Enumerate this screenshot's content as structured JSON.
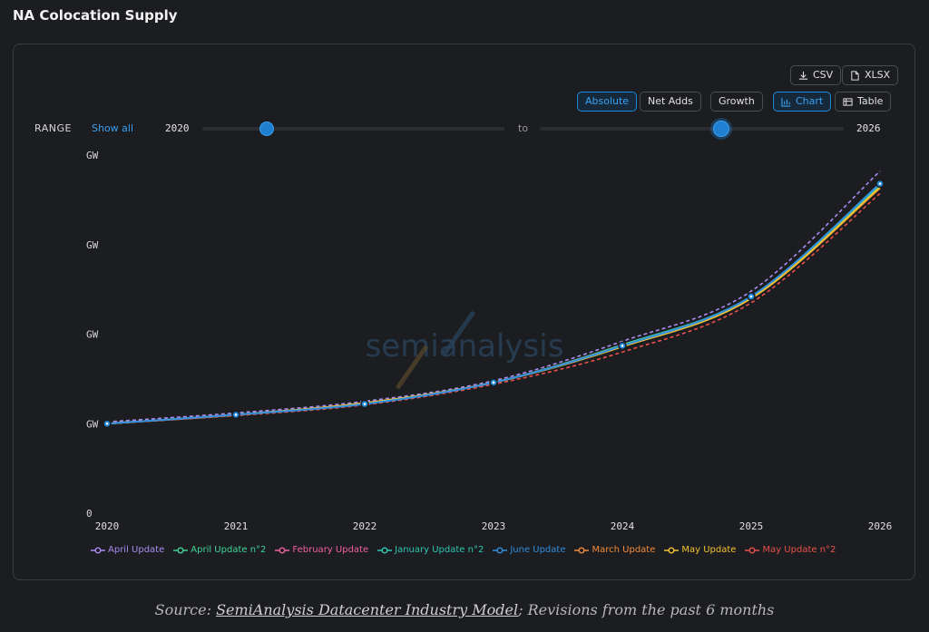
{
  "title": "NA Colocation Supply",
  "toolbar": {
    "csv": "CSV",
    "xlsx": "XLSX",
    "absolute": "Absolute",
    "net_adds": "Net Adds",
    "growth": "Growth",
    "chart": "Chart",
    "table": "Table"
  },
  "range": {
    "label": "RANGE",
    "show_all": "Show all",
    "from": "2020",
    "to_word": "to",
    "to": "2026",
    "start_fraction": 0.2,
    "end_fraction": 0.6
  },
  "watermark": "semianalysis",
  "colors": {
    "accent": "#1f88d8",
    "background": "#1c1d20"
  },
  "chart_data": {
    "type": "line",
    "x": [
      2020,
      2021,
      2022,
      2023,
      2024,
      2025,
      2026
    ],
    "y_tick_labels": [
      "0",
      "GW",
      "GW",
      "GW",
      "GW"
    ],
    "ylim": [
      0,
      4
    ],
    "grid": false,
    "legend_position": "bottom",
    "series": [
      {
        "name": "April Update",
        "color": "#a98bf0",
        "dashed": true,
        "values": [
          1.02,
          1.12,
          1.25,
          1.48,
          1.92,
          2.48,
          3.82
        ]
      },
      {
        "name": "April Update n°2",
        "color": "#3ed598",
        "dashed": false,
        "values": [
          1.0,
          1.1,
          1.23,
          1.46,
          1.88,
          2.42,
          3.68
        ]
      },
      {
        "name": "February Update",
        "color": "#f0609e",
        "dashed": false,
        "values": [
          1.0,
          1.1,
          1.23,
          1.46,
          1.87,
          2.41,
          3.66
        ]
      },
      {
        "name": "January Update n°2",
        "color": "#2cc8b0",
        "dashed": false,
        "values": [
          1.0,
          1.1,
          1.23,
          1.46,
          1.87,
          2.41,
          3.66
        ]
      },
      {
        "name": "June Update",
        "color": "#2f8fe0",
        "dashed": false,
        "values": [
          1.0,
          1.1,
          1.22,
          1.46,
          1.87,
          2.42,
          3.68
        ]
      },
      {
        "name": "March Update",
        "color": "#f08a3a",
        "dashed": false,
        "values": [
          1.0,
          1.1,
          1.23,
          1.46,
          1.87,
          2.4,
          3.63
        ]
      },
      {
        "name": "May Update",
        "color": "#f2c230",
        "dashed": false,
        "values": [
          1.0,
          1.1,
          1.23,
          1.46,
          1.86,
          2.4,
          3.64
        ]
      },
      {
        "name": "May Update n°2",
        "color": "#e8504a",
        "dashed": true,
        "values": [
          1.0,
          1.09,
          1.21,
          1.44,
          1.8,
          2.35,
          3.57
        ]
      }
    ],
    "highlight_series": "June Update"
  },
  "footer": {
    "prefix": "Source: ",
    "link": "SemiAnalysis Datacenter Industry Model",
    "suffix": "; Revisions from the past 6 months"
  }
}
